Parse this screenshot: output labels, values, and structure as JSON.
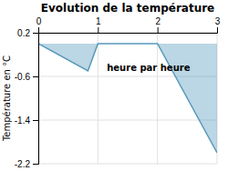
{
  "chart_data": {
    "type": "area",
    "title": "Evolution de la température",
    "y_label": "Température en °C",
    "x": [
      0,
      0.833,
      1,
      2,
      3
    ],
    "values": [
      0.0,
      -0.5,
      0.0,
      0.0,
      -2.0
    ],
    "baseline": 0.0,
    "color": "#5599bb",
    "xlim": [
      0,
      3
    ],
    "ylim": [
      -2.2,
      0.2
    ],
    "xticks": [
      0,
      1,
      2,
      3
    ],
    "yticks": [
      0.2,
      -0.6,
      -1.4,
      -2.2
    ],
    "grid": true,
    "annotations": [
      {
        "text": "heure par heure",
        "x": 1.85,
        "y": -0.38
      }
    ]
  }
}
